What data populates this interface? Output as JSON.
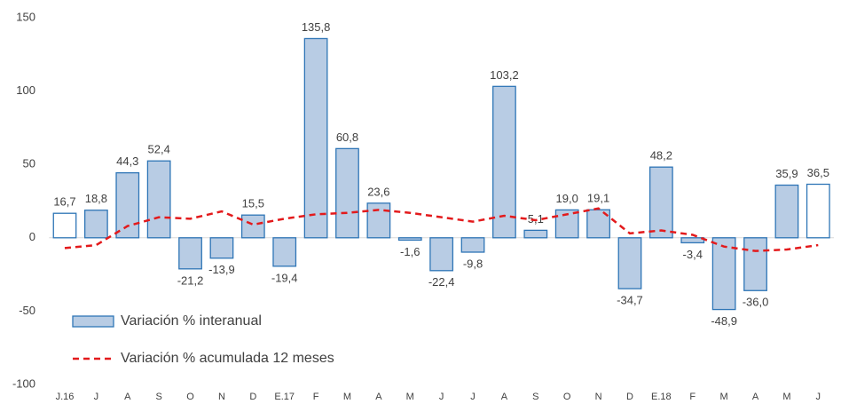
{
  "chart_data": {
    "type": "bar",
    "categories": [
      "J.16",
      "J",
      "A",
      "S",
      "O",
      "N",
      "D",
      "E.17",
      "F",
      "M",
      "A",
      "M",
      "J",
      "J",
      "A",
      "S",
      "O",
      "N",
      "D",
      "E.18",
      "F",
      "M",
      "A",
      "M",
      "J"
    ],
    "series": [
      {
        "name": "Variación % interanual",
        "type": "bar",
        "color": "#b8cce4",
        "stroke": "#2e75b6",
        "colors": [
          "#ffffff",
          "#b8cce4",
          "#b8cce4",
          "#b8cce4",
          "#b8cce4",
          "#b8cce4",
          "#b8cce4",
          "#b8cce4",
          "#b8cce4",
          "#b8cce4",
          "#b8cce4",
          "#b8cce4",
          "#b8cce4",
          "#b8cce4",
          "#b8cce4",
          "#b8cce4",
          "#b8cce4",
          "#b8cce4",
          "#b8cce4",
          "#b8cce4",
          "#b8cce4",
          "#b8cce4",
          "#b8cce4",
          "#b8cce4",
          "#ffffff"
        ],
        "values": [
          16.7,
          18.8,
          44.3,
          52.4,
          -21.2,
          -13.9,
          15.5,
          -19.4,
          135.8,
          60.8,
          23.6,
          -1.6,
          -22.4,
          -9.8,
          103.2,
          5.1,
          19.0,
          19.1,
          -34.7,
          48.2,
          -3.4,
          -48.9,
          -36.0,
          35.9,
          36.5
        ],
        "value_labels": [
          "16,7",
          "18,8",
          "44,3",
          "52,4",
          "-21,2",
          "-13,9",
          "15,5",
          "-19,4",
          "135,8",
          "60,8",
          "23,6",
          "-1,6",
          "-22,4",
          "-9,8",
          "103,2",
          "5,1",
          "19,0",
          "19,1",
          "-34,7",
          "48,2",
          "-3,4",
          "-48,9",
          "-36,0",
          "35,9",
          "36,5"
        ]
      },
      {
        "name": "Variación % acumulada 12 meses",
        "type": "line",
        "color": "#e31a1c",
        "dashed": true,
        "values": [
          -7,
          -5,
          8,
          14,
          13,
          18,
          9,
          13,
          16,
          17,
          19,
          17,
          14,
          11,
          15,
          12,
          16,
          20,
          3,
          5,
          2,
          -6,
          -9,
          -8,
          -5
        ]
      }
    ],
    "ylim": [
      -100,
      150
    ],
    "yticks": [
      -100,
      -50,
      0,
      50,
      100,
      150
    ],
    "grid": false,
    "legend": "lower left"
  }
}
